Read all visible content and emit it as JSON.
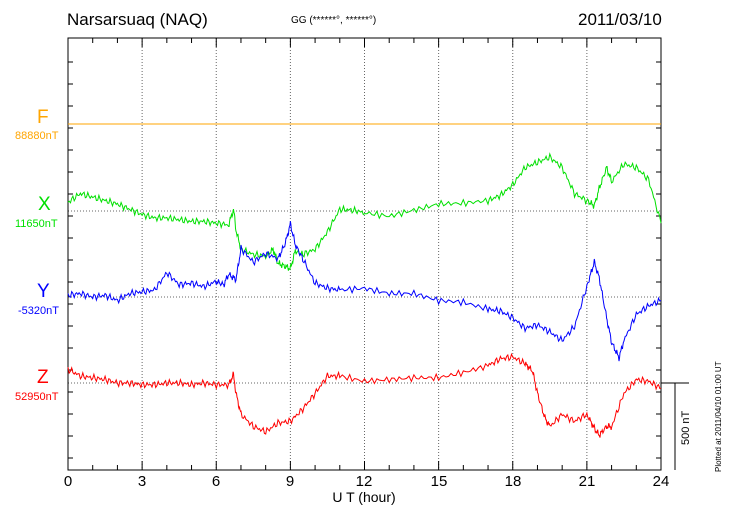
{
  "header": {
    "station": "Narsarsuaq (NAQ)",
    "coords": "GG (******°, ******°)",
    "date": "2011/03/10"
  },
  "plotted_note": "Plotted at 2011/04/10 01:00 UT",
  "colors": {
    "F": "#ffa500",
    "X": "#00e000",
    "Y": "#0000ff",
    "Z": "#ff0000"
  },
  "chart_data": {
    "type": "line",
    "x_unit": "UT hour",
    "xlim": [
      0,
      24
    ],
    "xlabel": "U T (hour)",
    "xticks": [
      "0",
      "3",
      "6",
      "9",
      "12",
      "15",
      "18",
      "21",
      "24"
    ],
    "scale_bar": "500 nT",
    "series": [
      {
        "name": "F",
        "baseline": "88880nT",
        "x": [
          0,
          24
        ],
        "y": [
          0,
          0
        ]
      },
      {
        "name": "X",
        "baseline": "11650nT",
        "x": [
          0,
          0.5,
          1,
          1.5,
          2,
          2.5,
          3,
          3.5,
          4,
          4.5,
          5,
          5.5,
          6,
          6.5,
          6.7,
          6.8,
          7,
          7.5,
          8,
          8.3,
          8.5,
          8.8,
          9,
          9.2,
          9.5,
          10,
          10.5,
          11,
          11.5,
          12,
          13,
          14,
          15,
          16,
          17,
          17.5,
          18,
          18.5,
          19,
          19.5,
          20,
          20.5,
          21,
          21.3,
          21.5,
          21.8,
          22,
          22.5,
          23,
          23.5,
          24
        ],
        "y": [
          50,
          100,
          80,
          60,
          40,
          10,
          -20,
          -40,
          -40,
          -50,
          -60,
          -60,
          -70,
          -80,
          10,
          -110,
          -220,
          -250,
          -260,
          -220,
          -300,
          -320,
          -330,
          -230,
          -250,
          -220,
          -120,
          10,
          5,
          -10,
          -30,
          5,
          40,
          45,
          60,
          90,
          150,
          250,
          280,
          310,
          250,
          100,
          60,
          30,
          130,
          250,
          170,
          270,
          250,
          180,
          -70
        ]
      },
      {
        "name": "Y",
        "baseline": "-5320nT",
        "x": [
          0,
          0.5,
          1,
          1.5,
          2,
          2.5,
          3,
          3.5,
          4,
          4.5,
          5,
          5.5,
          6,
          6.3,
          6.5,
          6.8,
          7,
          7.5,
          8,
          8.5,
          8.8,
          9,
          9.2,
          9.5,
          10,
          10.5,
          11,
          12,
          13,
          14,
          15,
          16,
          17,
          17.5,
          18,
          18.5,
          19,
          19.5,
          20,
          20.5,
          21,
          21.3,
          21.5,
          21.8,
          22,
          22.3,
          22.5,
          23,
          23.5,
          24
        ],
        "y": [
          10,
          20,
          0,
          10,
          -20,
          20,
          30,
          40,
          140,
          70,
          80,
          60,
          90,
          70,
          130,
          100,
          280,
          200,
          250,
          220,
          310,
          420,
          300,
          220,
          80,
          50,
          40,
          50,
          20,
          20,
          -20,
          -30,
          -70,
          -80,
          -120,
          -180,
          -160,
          -200,
          -250,
          -170,
          60,
          200,
          110,
          -120,
          -260,
          -350,
          -250,
          -100,
          -50,
          -20
        ]
      },
      {
        "name": "Z",
        "baseline": "52950nT",
        "x": [
          0,
          0.5,
          1,
          1.5,
          2,
          2.5,
          3,
          3.5,
          4,
          4.5,
          5,
          5.5,
          6,
          6.5,
          6.7,
          6.8,
          7,
          7.5,
          8,
          8.5,
          9,
          9.5,
          10,
          10.5,
          11,
          12,
          13,
          14,
          15,
          16,
          17,
          17.5,
          18,
          18.5,
          18.8,
          19,
          19.3,
          19.5,
          20,
          20.5,
          21,
          21.3,
          21.5,
          21.8,
          22,
          22.5,
          23,
          23.5,
          24
        ],
        "y": [
          80,
          40,
          30,
          20,
          0,
          0,
          -10,
          -10,
          0,
          0,
          -10,
          0,
          -10,
          -10,
          50,
          -60,
          -180,
          -250,
          -280,
          -230,
          -220,
          -150,
          -60,
          40,
          40,
          10,
          20,
          30,
          30,
          60,
          100,
          140,
          150,
          110,
          70,
          -60,
          -200,
          -250,
          -180,
          -220,
          -180,
          -260,
          -300,
          -250,
          -250,
          -60,
          20,
          10,
          -30
        ]
      }
    ]
  }
}
